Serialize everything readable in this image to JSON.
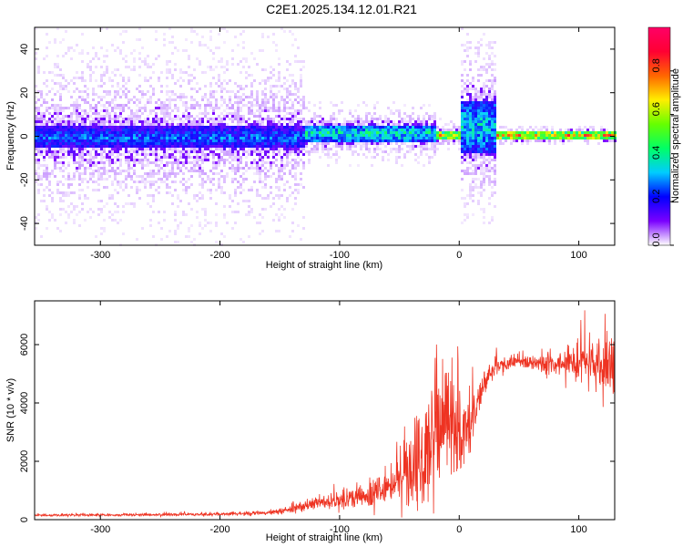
{
  "title": "C2E1.2025.134.12.01.R21",
  "colors": {
    "series": "#ee3322",
    "axis": "#000000"
  },
  "chart_data": [
    {
      "type": "heatmap",
      "xlabel": "Height of straight line (km)",
      "ylabel": "Frequency (Hz)",
      "xlim": [
        -355,
        130
      ],
      "ylim": [
        -50,
        50
      ],
      "x_ticks": [
        -300,
        -200,
        -100,
        0,
        100
      ],
      "y_ticks": [
        -40,
        -20,
        0,
        20,
        40
      ],
      "colorbar": {
        "label": "Normalized spectral amplitude",
        "range": [
          0,
          1
        ],
        "ticks": [
          0.0,
          0.2,
          0.4,
          0.6,
          0.8
        ],
        "tick_labels": [
          "0.0",
          "0.2",
          "0.4",
          "0.6",
          "0.8"
        ],
        "colormap": [
          "#ffffff",
          "#7a00ff",
          "#0000ff",
          "#00ccff",
          "#00ff66",
          "#66ff00",
          "#ffee00",
          "#ff6600",
          "#ff0033",
          "#ff0066"
        ]
      },
      "bands": [
        {
          "x": [
            -355,
            -130
          ],
          "peak_y": 0,
          "core_halfwidth": 5,
          "spread": 50,
          "peak_amplitude": 0.35
        },
        {
          "x": [
            -130,
            -20
          ],
          "peak_y": 2,
          "core_halfwidth": 4,
          "spread": 15,
          "peak_amplitude": 0.5
        },
        {
          "x": [
            -20,
            0
          ],
          "peak_y": 1,
          "core_halfwidth": 2,
          "spread": 8,
          "peak_amplitude": 0.85
        },
        {
          "x": [
            0,
            30
          ],
          "peak_y": 5,
          "core_halfwidth": 12,
          "spread": 45,
          "peak_amplitude": 0.45
        },
        {
          "x": [
            30,
            130
          ],
          "peak_y": 1,
          "core_halfwidth": 2,
          "spread": 4,
          "peak_amplitude": 0.9
        }
      ]
    },
    {
      "type": "line",
      "xlabel": "Height of straight line (km)",
      "ylabel": "SNR (10 * v/v)",
      "xlim": [
        -355,
        130
      ],
      "ylim": [
        0,
        7500
      ],
      "x_ticks": [
        -300,
        -200,
        -100,
        0,
        100
      ],
      "y_ticks": [
        0,
        2000,
        4000,
        6000
      ],
      "series": [
        {
          "x": [
            -355,
            -300,
            -250,
            -200,
            -160,
            -140,
            -120,
            -100,
            -80,
            -60,
            -50,
            -40,
            -30,
            -25,
            -20,
            -15,
            -10,
            -5,
            0,
            5,
            10,
            15,
            20,
            25,
            30,
            40,
            50,
            60,
            70,
            80,
            90,
            100,
            110,
            120,
            125,
            130
          ],
          "y": [
            150,
            160,
            170,
            190,
            230,
            350,
            550,
            700,
            800,
            1100,
            1400,
            1900,
            2600,
            3000,
            3200,
            3300,
            3400,
            3200,
            3000,
            3100,
            3300,
            4000,
            4500,
            5000,
            5200,
            5400,
            5450,
            5400,
            5350,
            5350,
            5400,
            5450,
            5500,
            5400,
            5300,
            5200
          ],
          "noise": [
            40,
            40,
            45,
            50,
            60,
            150,
            200,
            300,
            400,
            600,
            800,
            1200,
            1800,
            2200,
            1800,
            1600,
            1500,
            1400,
            1400,
            1300,
            1200,
            800,
            500,
            350,
            300,
            250,
            250,
            250,
            300,
            400,
            500,
            600,
            800,
            1000,
            1200,
            1200
          ]
        }
      ]
    }
  ]
}
